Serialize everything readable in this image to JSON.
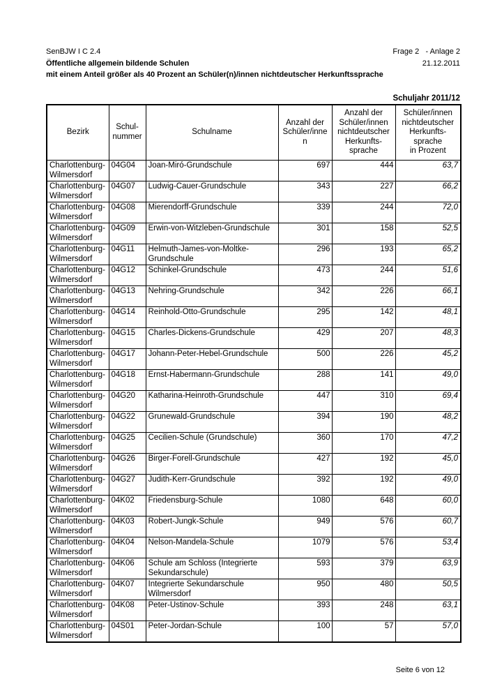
{
  "header": {
    "ref": "SenBJW I C 2.4",
    "frage_anlage": "Frage 2   - Anlage 2",
    "title": "Öffentliche allgemein bildende Schulen",
    "date": "21.12.2011",
    "subtitle": "mit einem Anteil größer als 40 Prozent an Schüler(n)/innen nichtdeutscher Herkunftssprache",
    "schuljahr": "Schuljahr 2011/12"
  },
  "table": {
    "columns": [
      "Bezirk",
      "Schul-\nnummer",
      "Schulname",
      "Anzahl der\nSchüler/inne\nn",
      "Anzahl der\nSchüler/innen\nnichtdeutscher\nHerkunfts-\nsprache",
      "Schüler/innen\nnichtdeutscher\nHerkunfts-\nsprache\nin Prozent"
    ],
    "rows": [
      {
        "bezirk": "Charlottenburg-Wilmersdorf",
        "schulnummer": "04G04",
        "schulname": "Joan-Miró-Grundschule",
        "schueler": "697",
        "ndh": "444",
        "prozent": "63,7"
      },
      {
        "bezirk": "Charlottenburg-Wilmersdorf",
        "schulnummer": "04G07",
        "schulname": "Ludwig-Cauer-Grundschule",
        "schueler": "343",
        "ndh": "227",
        "prozent": "66,2"
      },
      {
        "bezirk": "Charlottenburg-Wilmersdorf",
        "schulnummer": "04G08",
        "schulname": "Mierendorff-Grundschule",
        "schueler": "339",
        "ndh": "244",
        "prozent": "72,0"
      },
      {
        "bezirk": "Charlottenburg-Wilmersdorf",
        "schulnummer": "04G09",
        "schulname": "Erwin-von-Witzleben-Grundschule",
        "schueler": "301",
        "ndh": "158",
        "prozent": "52,5"
      },
      {
        "bezirk": "Charlottenburg-Wilmersdorf",
        "schulnummer": "04G11",
        "schulname": "Helmuth-James-von-Moltke-Grundschule",
        "schueler": "296",
        "ndh": "193",
        "prozent": "65,2"
      },
      {
        "bezirk": "Charlottenburg-Wilmersdorf",
        "schulnummer": "04G12",
        "schulname": "Schinkel-Grundschule",
        "schueler": "473",
        "ndh": "244",
        "prozent": "51,6"
      },
      {
        "bezirk": "Charlottenburg-Wilmersdorf",
        "schulnummer": "04G13",
        "schulname": "Nehring-Grundschule",
        "schueler": "342",
        "ndh": "226",
        "prozent": "66,1"
      },
      {
        "bezirk": "Charlottenburg-Wilmersdorf",
        "schulnummer": "04G14",
        "schulname": "Reinhold-Otto-Grundschule",
        "schueler": "295",
        "ndh": "142",
        "prozent": "48,1"
      },
      {
        "bezirk": "Charlottenburg-Wilmersdorf",
        "schulnummer": "04G15",
        "schulname": "Charles-Dickens-Grundschule",
        "schueler": "429",
        "ndh": "207",
        "prozent": "48,3"
      },
      {
        "bezirk": "Charlottenburg-Wilmersdorf",
        "schulnummer": "04G17",
        "schulname": "Johann-Peter-Hebel-Grundschule",
        "schueler": "500",
        "ndh": "226",
        "prozent": "45,2"
      },
      {
        "bezirk": "Charlottenburg-Wilmersdorf",
        "schulnummer": "04G18",
        "schulname": "Ernst-Habermann-Grundschule",
        "schueler": "288",
        "ndh": "141",
        "prozent": "49,0"
      },
      {
        "bezirk": "Charlottenburg-Wilmersdorf",
        "schulnummer": "04G20",
        "schulname": "Katharina-Heinroth-Grundschule",
        "schueler": "447",
        "ndh": "310",
        "prozent": "69,4"
      },
      {
        "bezirk": "Charlottenburg-Wilmersdorf",
        "schulnummer": "04G22",
        "schulname": "Grunewald-Grundschule",
        "schueler": "394",
        "ndh": "190",
        "prozent": "48,2"
      },
      {
        "bezirk": "Charlottenburg-Wilmersdorf",
        "schulnummer": "04G25",
        "schulname": "Cecilien-Schule (Grundschule)",
        "schueler": "360",
        "ndh": "170",
        "prozent": "47,2"
      },
      {
        "bezirk": "Charlottenburg-Wilmersdorf",
        "schulnummer": "04G26",
        "schulname": "Birger-Forell-Grundschule",
        "schueler": "427",
        "ndh": "192",
        "prozent": "45,0"
      },
      {
        "bezirk": "Charlottenburg-Wilmersdorf",
        "schulnummer": "04G27",
        "schulname": "Judith-Kerr-Grundschule",
        "schueler": "392",
        "ndh": "192",
        "prozent": "49,0"
      },
      {
        "bezirk": "Charlottenburg-Wilmersdorf",
        "schulnummer": "04K02",
        "schulname": "Friedensburg-Schule",
        "schueler": "1080",
        "ndh": "648",
        "prozent": "60,0"
      },
      {
        "bezirk": "Charlottenburg-Wilmersdorf",
        "schulnummer": "04K03",
        "schulname": "Robert-Jungk-Schule",
        "schueler": "949",
        "ndh": "576",
        "prozent": "60,7"
      },
      {
        "bezirk": "Charlottenburg-Wilmersdorf",
        "schulnummer": "04K04",
        "schulname": "Nelson-Mandela-Schule",
        "schueler": "1079",
        "ndh": "576",
        "prozent": "53,4"
      },
      {
        "bezirk": "Charlottenburg-Wilmersdorf",
        "schulnummer": "04K06",
        "schulname": "Schule am Schloss (Integrierte Sekundarschule)",
        "schueler": "593",
        "ndh": "379",
        "prozent": "63,9"
      },
      {
        "bezirk": "Charlottenburg-Wilmersdorf",
        "schulnummer": "04K07",
        "schulname": "Integrierte Sekundarschule Wilmersdorf",
        "schueler": "950",
        "ndh": "480",
        "prozent": "50,5"
      },
      {
        "bezirk": "Charlottenburg-Wilmersdorf",
        "schulnummer": "04K08",
        "schulname": "Peter-Ustinov-Schule",
        "schueler": "393",
        "ndh": "248",
        "prozent": "63,1"
      },
      {
        "bezirk": "Charlottenburg-Wilmersdorf",
        "schulnummer": "04S01",
        "schulname": "Peter-Jordan-Schule",
        "schueler": "100",
        "ndh": "57",
        "prozent": "57,0"
      }
    ]
  },
  "footer": {
    "page_label": "Seite 6 von 12"
  }
}
